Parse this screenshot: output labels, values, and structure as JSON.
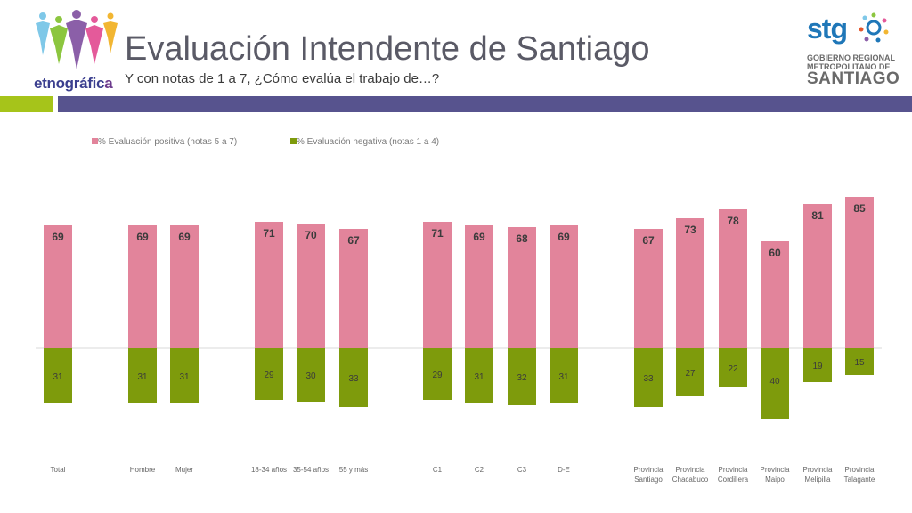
{
  "header": {
    "title": "Evaluación Intendente de Santiago",
    "subtitle": "Y con notas de 1 a 7, ¿Cómo evalúa el trabajo de…?"
  },
  "logo_left": {
    "text_main": "etnográfic",
    "text_accent": "a"
  },
  "logo_right": {
    "word": "stg",
    "line1": "GOBIERNO REGIONAL",
    "line2": "METROPOLITANO DE",
    "line3": "SANTIAGO"
  },
  "colors": {
    "positive": "#e2849b",
    "negative": "#7e9b0c",
    "accent_green": "#a6c41a",
    "accent_purple": "#57538e"
  },
  "chart_data": {
    "type": "bar",
    "stacking": "diverging",
    "title": "",
    "legend_position": "top-left",
    "categories": [
      [
        "Total"
      ],
      [
        "Hombre"
      ],
      [
        "Mujer"
      ],
      [
        "18-34 años"
      ],
      [
        "35-54 años"
      ],
      [
        "55 y más"
      ],
      [
        "C1"
      ],
      [
        "C2"
      ],
      [
        "C3"
      ],
      [
        "D-E"
      ],
      [
        "Provincia",
        "Santiago"
      ],
      [
        "Provincia",
        "Chacabuco"
      ],
      [
        "Provincia",
        "Cordillera"
      ],
      [
        "Provincia",
        "Maipo"
      ],
      [
        "Provincia",
        "Melipilla"
      ],
      [
        "Provincia",
        "Talagante"
      ]
    ],
    "series": [
      {
        "name": "% Evaluación positiva (notas 5 a 7)",
        "values": [
          69,
          69,
          69,
          71,
          70,
          67,
          71,
          69,
          68,
          69,
          67,
          73,
          78,
          60,
          81,
          85
        ]
      },
      {
        "name": "% Evaluación negativa (notas 1 a 4)",
        "values": [
          31,
          31,
          31,
          29,
          30,
          33,
          29,
          31,
          32,
          31,
          33,
          27,
          22,
          40,
          19,
          15
        ]
      }
    ]
  }
}
